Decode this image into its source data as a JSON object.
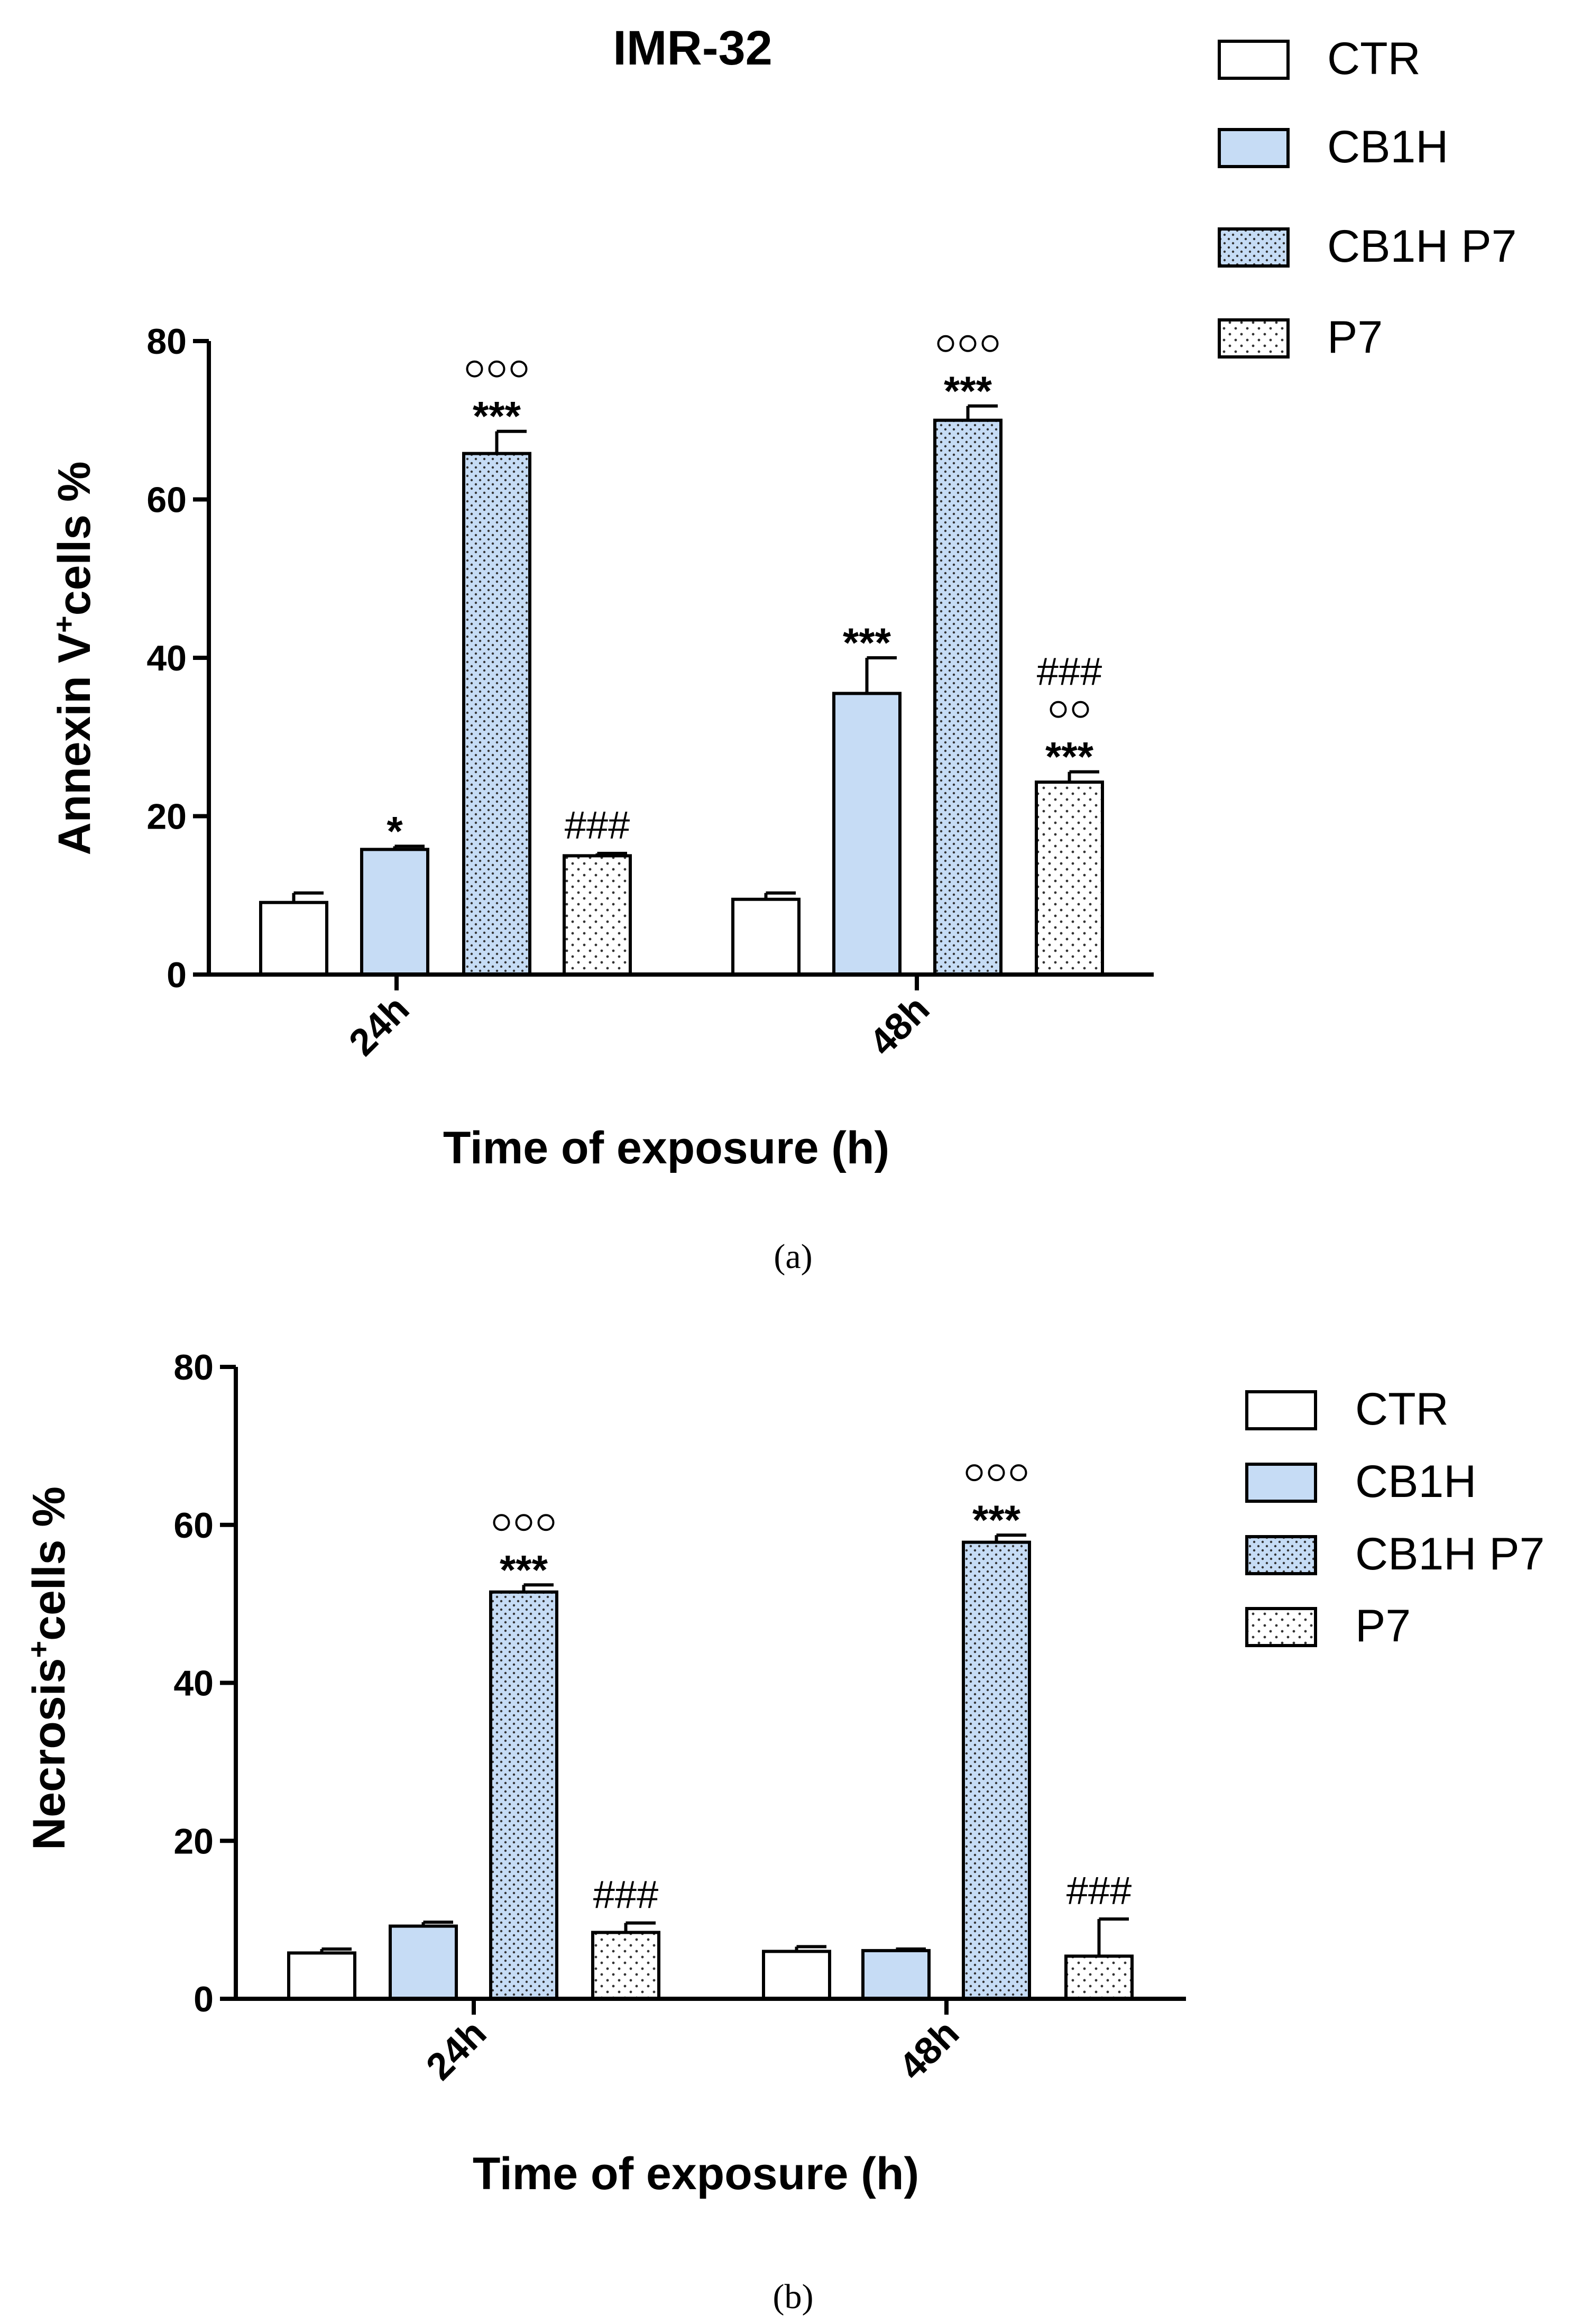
{
  "colors": {
    "ctr": "#ffffff",
    "cb1h": "#c6dcf5",
    "cb1hp7": "#c6dcf5",
    "p7": "#ffffff",
    "stroke": "#000000",
    "dot": "#333333"
  },
  "chart_data": [
    {
      "type": "bar",
      "title": "IMR-32",
      "ylabel_main": "Annexin V",
      "ylabel_sup": "+",
      "ylabel_rest": "cells %",
      "xlabel": "Time of exposure (h)",
      "caption": "(a)",
      "ylim": [
        0,
        80
      ],
      "yticks": [
        "0",
        "20",
        "40",
        "60",
        "80"
      ],
      "categories": [
        "24h",
        "48h"
      ],
      "legend_position": "top-right",
      "series": [
        {
          "name": "CTR",
          "key": "ctr",
          "values": [
            9.1,
            9.5
          ],
          "errors": [
            1.2,
            0.8
          ],
          "annotations": [
            [],
            []
          ]
        },
        {
          "name": "CB1H",
          "key": "cb1h",
          "values": [
            15.8,
            35.5
          ],
          "errors": [
            0.4,
            4.5
          ],
          "annotations": [
            [
              "*"
            ],
            [
              "***"
            ]
          ]
        },
        {
          "name": "CB1H P7",
          "key": "cb1hp7",
          "values": [
            65.8,
            70.0
          ],
          "errors": [
            2.8,
            1.8
          ],
          "annotations": [
            [
              "***",
              "ooo"
            ],
            [
              "***",
              "ooo"
            ]
          ]
        },
        {
          "name": "P7",
          "key": "p7",
          "values": [
            15.0,
            24.3
          ],
          "errors": [
            0.3,
            1.3
          ],
          "annotations": [
            [
              "###"
            ],
            [
              "***",
              "oo",
              "###"
            ]
          ]
        }
      ]
    },
    {
      "type": "bar",
      "title": "",
      "ylabel_main": "Necrosis",
      "ylabel_sup": "+",
      "ylabel_rest": "cells %",
      "xlabel": "Time of exposure (h)",
      "caption": "(b)",
      "ylim": [
        0,
        80
      ],
      "yticks": [
        "0",
        "20",
        "40",
        "60",
        "80"
      ],
      "categories": [
        "24h",
        "48h"
      ],
      "legend_position": "right",
      "series": [
        {
          "name": "CTR",
          "key": "ctr",
          "values": [
            5.8,
            6.0
          ],
          "errors": [
            0.5,
            0.6
          ],
          "annotations": [
            [],
            []
          ]
        },
        {
          "name": "CB1H",
          "key": "cb1h",
          "values": [
            9.2,
            6.1
          ],
          "errors": [
            0.5,
            0.2
          ],
          "annotations": [
            [],
            []
          ]
        },
        {
          "name": "CB1H P7",
          "key": "cb1hp7",
          "values": [
            51.5,
            57.8
          ],
          "errors": [
            0.9,
            0.9
          ],
          "annotations": [
            [
              "***",
              "ooo"
            ],
            [
              "***",
              "ooo"
            ]
          ]
        },
        {
          "name": "P7",
          "key": "p7",
          "values": [
            8.4,
            5.4
          ],
          "errors": [
            1.2,
            4.7
          ],
          "annotations": [
            [
              "###"
            ],
            [
              "###"
            ]
          ]
        }
      ]
    }
  ]
}
